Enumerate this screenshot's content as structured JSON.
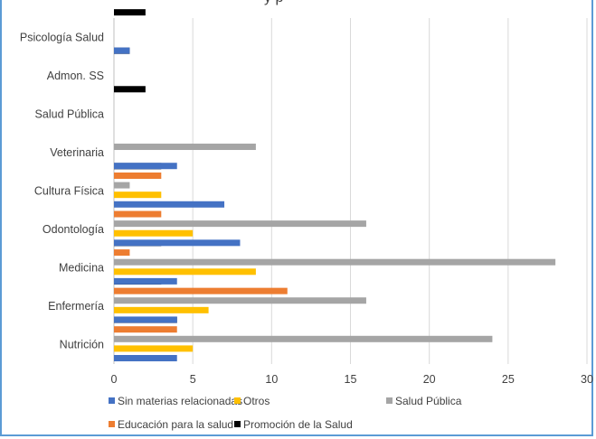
{
  "chart_data": {
    "type": "bar",
    "orientation": "horizontal",
    "title_fragment": "y  p",
    "categories": [
      "Nutrición",
      "Enfermería",
      "Medicina",
      "Odontología",
      "Cultura Física",
      "Veterinaria",
      "Salud Pública",
      "Admon. SS",
      "Psicología Salud"
    ],
    "series": [
      {
        "name": "Sin materias relacionadas",
        "color": "#4472c4",
        "values": [
          4,
          4,
          4,
          8,
          7,
          4,
          0,
          0,
          1
        ]
      },
      {
        "name": "Otros",
        "color": "#ffc000",
        "values": [
          5,
          6,
          9,
          5,
          3,
          0,
          0,
          0,
          0
        ]
      },
      {
        "name": "Salud Pública",
        "color": "#a5a5a5",
        "values": [
          24,
          16,
          28,
          16,
          1,
          9,
          0,
          0,
          0
        ]
      },
      {
        "name": "Educación para la salud",
        "color": "#ed7d31",
        "values": [
          4,
          11,
          1,
          3,
          3,
          0,
          0,
          0,
          0
        ]
      },
      {
        "name": "Promoción de la Salud",
        "color": "#000000",
        "values": [
          4,
          3,
          3,
          0,
          3,
          0,
          2,
          1,
          2
        ]
      }
    ],
    "xlim": [
      0,
      30
    ],
    "xticks": [
      0,
      5,
      10,
      15,
      20,
      25,
      30
    ],
    "grid": true,
    "legend_position": "bottom"
  }
}
